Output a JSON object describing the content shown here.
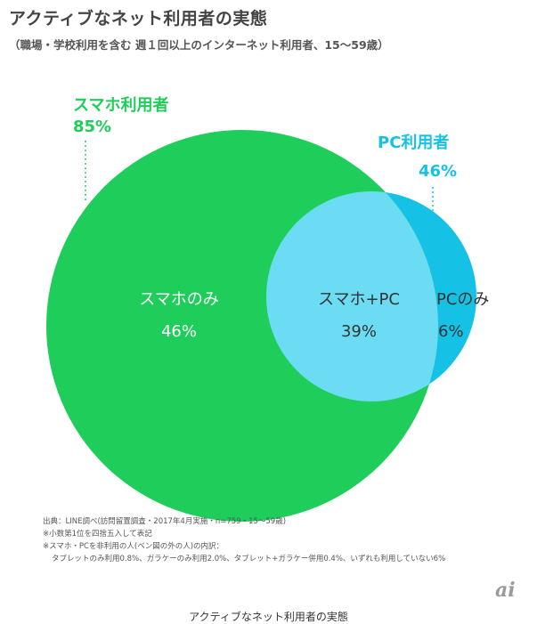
{
  "header": {
    "title": "アクティブなネット利用者の実態",
    "subtitle": "（職場・学校利用を含む 週１回以上のインターネット利用者、15～59歳）"
  },
  "venn": {
    "smartphone_label": "スマホ利用者",
    "smartphone_pct": "85%",
    "pc_label": "PC利用者",
    "pc_pct": "46%",
    "regions": {
      "smartphone_only_label": "スマホのみ",
      "smartphone_only_pct": "46%",
      "both_label": "スマホ+PC",
      "both_pct": "39%",
      "pc_only_label": "PCのみ",
      "pc_only_pct": "6%"
    },
    "colors": {
      "smartphone": "#1fce5a",
      "pc": "#15c2e6",
      "overlap": "#6bdcf3"
    }
  },
  "notes": {
    "source": "出典：LINE調べ(訪問留置調査・2017年4月実施・n=759・15～59歳)",
    "rounding": "※小数第1位を四捨五入して表記",
    "breakdown_title": "※スマホ・PCを非利用の人(ベン図の外の人)の内訳：",
    "breakdown": "タブレットのみ利用0.8%、ガラケーのみ利用2.0%、タブレット+ガラケー併用0.4%、いずれも利用していない6%"
  },
  "logo": {
    "text": "ai",
    "icon": "itmedia-ai-logo"
  },
  "caption": "アクティブなネット利用者の実態"
}
